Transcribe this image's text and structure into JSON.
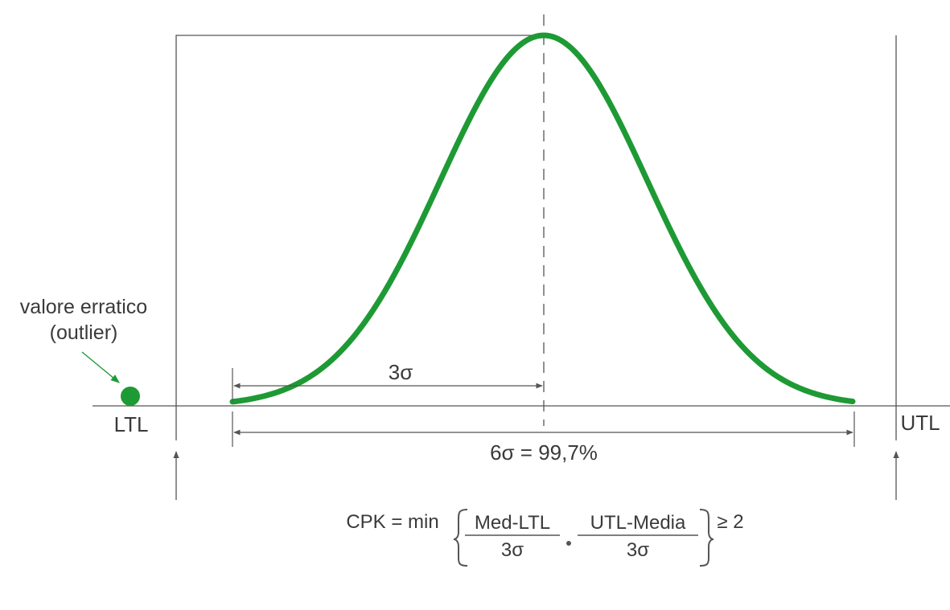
{
  "colors": {
    "curve": "#1e9a35",
    "line": "#555555",
    "text": "#3a3a3a"
  },
  "outlier": {
    "label_line1": "valore erratico",
    "label_line2": "(outlier)"
  },
  "limits": {
    "lower": "LTL",
    "upper": "UTL"
  },
  "dimensions": {
    "half_span": "3σ",
    "full_span": "6σ = 99,7%"
  },
  "formula": {
    "prefix": "CPK = min",
    "frac1_num": "Med-LTL",
    "frac1_den": "3σ",
    "frac2_num": "UTL-Media",
    "frac2_den": "3σ",
    "suffix": "≥ 2"
  }
}
